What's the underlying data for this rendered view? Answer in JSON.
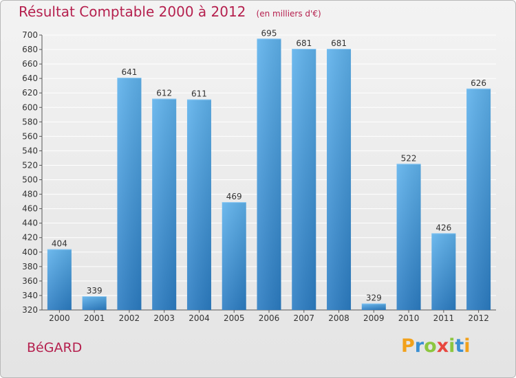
{
  "title": "Résultat Comptable 2000 à 2012",
  "unit_note": "(en milliers d'€)",
  "commune": "BéGARD",
  "logo": {
    "text": "Proxiti",
    "letters": [
      "P",
      "r",
      "o",
      "x",
      "i",
      "t",
      "i"
    ]
  },
  "colors": {
    "title": "#b5204e",
    "bar_light": "#5aaeea",
    "bar_dark": "#2b7fc6",
    "grid": "#ffffff",
    "axis": "#555555"
  },
  "chart_data": {
    "type": "bar",
    "title": "Résultat Comptable 2000 à 2012",
    "xlabel": "",
    "ylabel": "",
    "categories": [
      "2000",
      "2001",
      "2002",
      "2003",
      "2004",
      "2005",
      "2006",
      "2007",
      "2008",
      "2009",
      "2010",
      "2011",
      "2012"
    ],
    "values": [
      404,
      339,
      641,
      612,
      611,
      469,
      695,
      681,
      681,
      329,
      522,
      426,
      626
    ],
    "ylim": [
      320,
      700
    ],
    "ytick_step": 20,
    "grid": true
  }
}
